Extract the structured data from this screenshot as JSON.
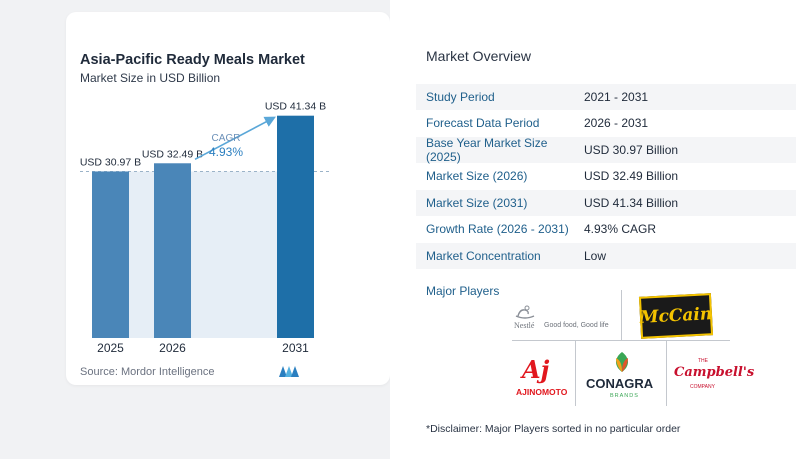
{
  "chart_data": {
    "type": "bar",
    "title": "Asia-Pacific Ready Meals Market",
    "subtitle": "Market Size in USD Billion",
    "categories": [
      "2025",
      "2026",
      "2031"
    ],
    "values": [
      30.97,
      32.49,
      41.34
    ],
    "value_labels": [
      "USD 30.97 B",
      "USD 32.49 B",
      "USD 41.34 B"
    ],
    "ylim": [
      0,
      45
    ],
    "grid": false,
    "cagr_label": "CAGR",
    "cagr_value": "4.93%",
    "bar_colors": [
      "#4a86b8",
      "#4a86b8",
      "#1e6fa8"
    ]
  },
  "source": "Source:  Mordor Intelligence",
  "overview": {
    "title": "Market Overview",
    "rows": [
      {
        "label": "Study Period",
        "value": "2021 - 2031"
      },
      {
        "label": "Forecast Data Period",
        "value": "2026 - 2031"
      },
      {
        "label": "Base Year Market Size (2025)",
        "value": "USD 30.97 Billion"
      },
      {
        "label": "Market Size (2026)",
        "value": "USD 32.49 Billion"
      },
      {
        "label": "Market Size (2031)",
        "value": "USD 41.34 Billion"
      },
      {
        "label": "Growth Rate (2026 - 2031)",
        "value": "4.93% CAGR"
      },
      {
        "label": "Market Concentration",
        "value": "Low"
      }
    ]
  },
  "players": {
    "title": "Major Players",
    "nestle": {
      "name": "Nestlé",
      "tagline": "Good food, Good life"
    },
    "mccain": "McCain",
    "ajinomoto": {
      "mark": "Aj",
      "name": "AJINOMOTO"
    },
    "conagra": {
      "name": "CONAGRA",
      "sub": "BRANDS"
    },
    "campbells": {
      "the": "THE",
      "name": "Campbell's",
      "sub": "COMPANY"
    }
  },
  "disclaimer": "*Disclaimer: Major Players sorted in no particular order"
}
